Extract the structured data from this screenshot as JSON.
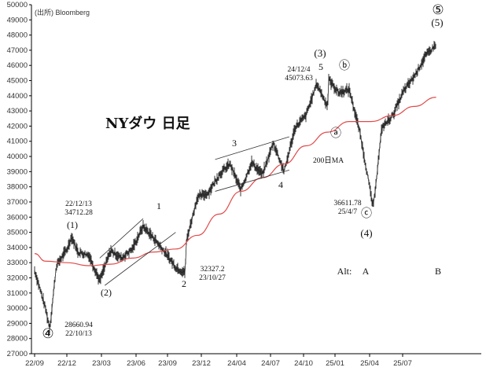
{
  "source": "(出所) Bloomberg",
  "colors": {
    "price": "#222222",
    "ma": "#e04a4a",
    "channel": "#333333",
    "grid": "#000000"
  },
  "chart_data": {
    "type": "line",
    "title": "NYダウ 日足",
    "xlabel": "",
    "ylabel": "",
    "ylim": [
      27000,
      50000
    ],
    "grid": false,
    "x_ticks": [
      "22/09",
      "22/12",
      "23/03",
      "23/06",
      "23/09",
      "23/12",
      "24/04",
      "24/07",
      "24/10",
      "25/01",
      "25/04",
      "25/07"
    ],
    "y_ticks": [
      27000,
      28000,
      29000,
      30000,
      31000,
      32000,
      33000,
      34000,
      35000,
      36000,
      37000,
      38000,
      39000,
      40000,
      41000,
      42000,
      43000,
      44000,
      45000,
      46000,
      47000,
      48000,
      49000,
      50000
    ],
    "series": [
      {
        "name": "",
        "style": "ohlc",
        "x": [
          "22/09",
          "22/10",
          "22/10/13",
          "22/11",
          "22/12",
          "22/12/13",
          "23/01",
          "23/02",
          "23/03",
          "23/04",
          "23/05",
          "23/06",
          "23/07",
          "23/08",
          "23/09",
          "23/10",
          "23/10/27",
          "23/11",
          "23/12",
          "24/01",
          "24/02",
          "24/03",
          "24/04",
          "24/05",
          "24/06",
          "24/07",
          "24/08",
          "24/09",
          "24/10",
          "24/11",
          "24/12/4",
          "24/12",
          "25/01",
          "25/02",
          "25/03",
          "25/04/7",
          "25/05",
          "25/06",
          "25/07",
          "25/08",
          "25/09",
          "25/10"
        ],
        "values": [
          32500,
          30000,
          28660.94,
          32800,
          33900,
          34712.28,
          33700,
          33500,
          31800,
          33800,
          33300,
          33900,
          35400,
          34600,
          33700,
          32700,
          32327.2,
          34500,
          37300,
          37600,
          38800,
          39500,
          37800,
          39600,
          38800,
          40900,
          39000,
          41900,
          42700,
          44800,
          45073.63,
          43300,
          44200,
          44400,
          41500,
          36611.78,
          41900,
          42700,
          44300,
          45300,
          46600,
          47400
        ]
      },
      {
        "name": "200日MA",
        "style": "line",
        "x": [
          "22/09",
          "22/10",
          "22/12",
          "23/02",
          "23/04",
          "23/06",
          "23/08",
          "23/10",
          "23/12",
          "24/02",
          "24/04",
          "24/06",
          "24/08",
          "24/10",
          "24/12",
          "25/02",
          "25/04",
          "25/06",
          "25/08",
          "25/10"
        ],
        "values": [
          33600,
          33100,
          33000,
          32800,
          32900,
          33300,
          33700,
          33900,
          34800,
          36200,
          37700,
          38600,
          39500,
          40700,
          41600,
          42300,
          42300,
          42700,
          43300,
          43900
        ]
      }
    ],
    "annotations": {
      "price_labels": [
        {
          "text": "22/12/13",
          "x": "22/12/13",
          "y": 35400
        },
        {
          "text": "34712.28",
          "x": "22/12/13",
          "y": 35400
        },
        {
          "text": "28660.94",
          "x": "22/10/13",
          "y": 28660.94
        },
        {
          "text": "22/10/13",
          "x": "22/10/13",
          "y": 28660.94
        },
        {
          "text": "32327.2",
          "x": "23/10/27",
          "y": 32327.2
        },
        {
          "text": "23/10/27",
          "x": "23/10/27",
          "y": 32327.2
        },
        {
          "text": "24/12/4",
          "x": "24/12/4",
          "y": 45073.63
        },
        {
          "text": "45073.63",
          "x": "24/12/4",
          "y": 45073.63
        },
        {
          "text": "36611.78",
          "x": "25/04/7",
          "y": 36611.78
        },
        {
          "text": "25/4/7",
          "x": "25/04/7",
          "y": 36611.78
        }
      ],
      "wave_labels": [
        "(1)",
        "(2)",
        "1",
        "2",
        "3",
        "4",
        "(3)",
        "5",
        "ⓐ",
        "ⓑ",
        "ⓒ",
        "(4)",
        "⑤",
        "(5)",
        "④"
      ],
      "alternate": [
        "Alt:",
        "A",
        "B"
      ],
      "ma_label": "200日MA"
    }
  }
}
